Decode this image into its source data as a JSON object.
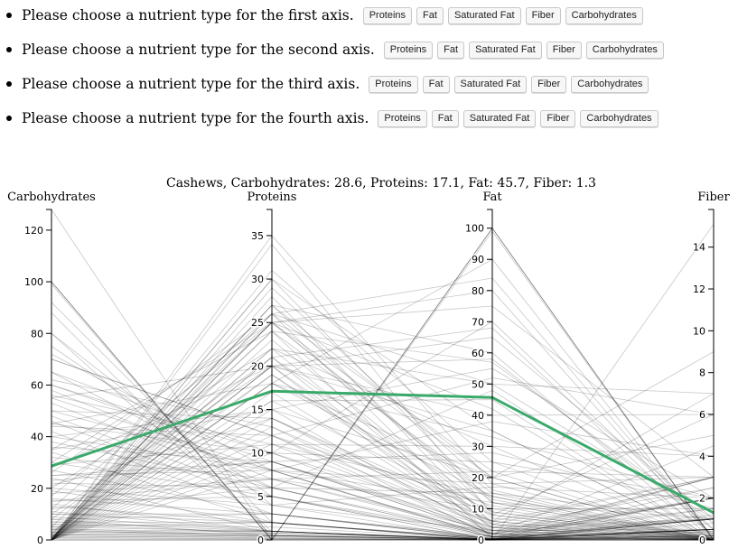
{
  "choices": [
    {
      "prompt": "Please choose a nutrient type for the first axis."
    },
    {
      "prompt": "Please choose a nutrient type for the second axis."
    },
    {
      "prompt": "Please choose a nutrient type for the third axis."
    },
    {
      "prompt": "Please choose a nutrient type for the fourth axis."
    }
  ],
  "button_labels": [
    "Proteins",
    "Fat",
    "Saturated Fat",
    "Fiber",
    "Carbohydrates"
  ],
  "chart_data": {
    "type": "parallel-coordinates",
    "title": "Cashews, Carbohydrates: 28.6, Proteins: 17.1, Fat: 45.7, Fiber: 1.3",
    "axes": [
      {
        "label": "Carbohydrates",
        "domain": [
          0,
          128
        ],
        "ticks": [
          0,
          20,
          40,
          60,
          80,
          100,
          120
        ]
      },
      {
        "label": "Proteins",
        "domain": [
          0,
          38
        ],
        "ticks": [
          0,
          5,
          10,
          15,
          20,
          25,
          30,
          35
        ]
      },
      {
        "label": "Fat",
        "domain": [
          0,
          106
        ],
        "ticks": [
          0,
          10,
          20,
          30,
          40,
          50,
          60,
          70,
          80,
          90,
          100
        ]
      },
      {
        "label": "Fiber",
        "domain": [
          0,
          15.8
        ],
        "ticks": [
          0,
          2,
          4,
          6,
          8,
          10,
          12,
          14
        ]
      }
    ],
    "highlight": {
      "name": "Cashews",
      "values": [
        28.6,
        17.1,
        45.7,
        1.3
      ],
      "color": "#3aaa6a"
    },
    "background_line_color": "#000000",
    "background_lines": [
      [
        128,
        0,
        0,
        15.1
      ],
      [
        100,
        0,
        0,
        0
      ],
      [
        100,
        0,
        0,
        0
      ],
      [
        100,
        0,
        0,
        0
      ],
      [
        99,
        0,
        100,
        0
      ],
      [
        92,
        2,
        0.5,
        3
      ],
      [
        88,
        0.5,
        0.2,
        1
      ],
      [
        80,
        1,
        0.3,
        0.5
      ],
      [
        75,
        5,
        2,
        1.5
      ],
      [
        72,
        8,
        1,
        2
      ],
      [
        70,
        12,
        1.5,
        3
      ],
      [
        65,
        10,
        2,
        4.5
      ],
      [
        62,
        13,
        6,
        7
      ],
      [
        60,
        9,
        3,
        2
      ],
      [
        58,
        7,
        2,
        1
      ],
      [
        56,
        11,
        4,
        2.5
      ],
      [
        55,
        8,
        18,
        3
      ],
      [
        53,
        6,
        1,
        0.5
      ],
      [
        50,
        14,
        8,
        6
      ],
      [
        48,
        5,
        0,
        1
      ],
      [
        46,
        4,
        3,
        0.5
      ],
      [
        45,
        10,
        25,
        2
      ],
      [
        44,
        12,
        5,
        3
      ],
      [
        42,
        3,
        1,
        1
      ],
      [
        40,
        8,
        0.5,
        2
      ],
      [
        38,
        6,
        15,
        1
      ],
      [
        36,
        9,
        2,
        3
      ],
      [
        35,
        15,
        20,
        5
      ],
      [
        34,
        2,
        0,
        0.5
      ],
      [
        32,
        7,
        10,
        1.5
      ],
      [
        30,
        5,
        1,
        2
      ],
      [
        29,
        11,
        30,
        4
      ],
      [
        28,
        20,
        40,
        6
      ],
      [
        27,
        3,
        0.3,
        0.5
      ],
      [
        26,
        26,
        50,
        7
      ],
      [
        25,
        8,
        12,
        1
      ],
      [
        24,
        1,
        0,
        0.2
      ],
      [
        23,
        9,
        4,
        1
      ],
      [
        22,
        6,
        2,
        2
      ],
      [
        21,
        14,
        6,
        3
      ],
      [
        20,
        4,
        0,
        0.5
      ],
      [
        19,
        2,
        0.5,
        0
      ],
      [
        18,
        7,
        3,
        1
      ],
      [
        17,
        25,
        20,
        9
      ],
      [
        16,
        3,
        1,
        0.5
      ],
      [
        15,
        5,
        0,
        1
      ],
      [
        14,
        1,
        0.1,
        0.2
      ],
      [
        13,
        2,
        0.2,
        0.4
      ],
      [
        12,
        6,
        1,
        1
      ],
      [
        11,
        1,
        0,
        0.5
      ],
      [
        10,
        3,
        0.5,
        0.5
      ],
      [
        10,
        2,
        0.1,
        2
      ],
      [
        9,
        1,
        0.2,
        1
      ],
      [
        8,
        0.5,
        0,
        0.3
      ],
      [
        8,
        3,
        0.4,
        0.8
      ],
      [
        7,
        2,
        0.1,
        0.2
      ],
      [
        7,
        1,
        0.1,
        2.5
      ],
      [
        6,
        0.8,
        0.2,
        0.5
      ],
      [
        6,
        1.5,
        0.3,
        1.5
      ],
      [
        5,
        1,
        0,
        0.1
      ],
      [
        5,
        2,
        0.5,
        1
      ],
      [
        4.5,
        0.5,
        0.1,
        0
      ],
      [
        4,
        1,
        0.2,
        0.4
      ],
      [
        4,
        0.3,
        0,
        1.2
      ],
      [
        3.5,
        0.6,
        0.1,
        0.3
      ],
      [
        3,
        0.5,
        0.2,
        0.5
      ],
      [
        3,
        1,
        0,
        0.1
      ],
      [
        2.5,
        0.2,
        0,
        0.2
      ],
      [
        2,
        0.4,
        0.1,
        0.1
      ],
      [
        2,
        0.8,
        0.3,
        0.5
      ],
      [
        1.5,
        0.2,
        0,
        0
      ],
      [
        1,
        0.1,
        0,
        0
      ],
      [
        1,
        0.5,
        0.1,
        0.2
      ],
      [
        0.5,
        0.1,
        0,
        0
      ],
      [
        0,
        0,
        100,
        0
      ],
      [
        0,
        0,
        99,
        0
      ],
      [
        0,
        0,
        100,
        0
      ],
      [
        0,
        30,
        35,
        0
      ],
      [
        0,
        26,
        22,
        0
      ],
      [
        0,
        25,
        12,
        0
      ],
      [
        0,
        24,
        15,
        0
      ],
      [
        0,
        22,
        30,
        0
      ],
      [
        0,
        21,
        10,
        0
      ],
      [
        0,
        20,
        6,
        0
      ],
      [
        0,
        19,
        8,
        0
      ],
      [
        0,
        18,
        14,
        0
      ],
      [
        0,
        17,
        4,
        0
      ],
      [
        0,
        16,
        9,
        0
      ],
      [
        0,
        15,
        2,
        0
      ],
      [
        0,
        14,
        3,
        0
      ],
      [
        0,
        13,
        1,
        0
      ],
      [
        0,
        12,
        11,
        0
      ],
      [
        0,
        27,
        20,
        0
      ],
      [
        0,
        28,
        5,
        0
      ],
      [
        0,
        29,
        16,
        0
      ],
      [
        0,
        31,
        25,
        0
      ],
      [
        0,
        34,
        8,
        0
      ],
      [
        0,
        35,
        18,
        0
      ],
      [
        0,
        23,
        7,
        0
      ],
      [
        0,
        20,
        1,
        0
      ],
      [
        1,
        25,
        13,
        0
      ],
      [
        1,
        22,
        4,
        0
      ],
      [
        0.5,
        27,
        9,
        0
      ],
      [
        2,
        26,
        3,
        0
      ],
      [
        0.5,
        30,
        12,
        0
      ],
      [
        1,
        18,
        20,
        0
      ],
      [
        0,
        11,
        14,
        0
      ],
      [
        0,
        10,
        6,
        0
      ],
      [
        0,
        9,
        2,
        0
      ],
      [
        0,
        8,
        1,
        0
      ],
      [
        2,
        24,
        0.5,
        0
      ],
      [
        1,
        21,
        2,
        0
      ],
      [
        3,
        19,
        5,
        0
      ],
      [
        0,
        16,
        45,
        0
      ],
      [
        0,
        20,
        35,
        0
      ],
      [
        0,
        25,
        80,
        0
      ],
      [
        0,
        27,
        60,
        0
      ],
      [
        0,
        18,
        90,
        0
      ],
      [
        60,
        10,
        70,
        0.5
      ],
      [
        55,
        20,
        65,
        1
      ],
      [
        40,
        15,
        55,
        2
      ],
      [
        30,
        25,
        75,
        3
      ],
      [
        20,
        22,
        50,
        1
      ],
      [
        10,
        20,
        58,
        0.5
      ],
      [
        5,
        25,
        42,
        0
      ],
      [
        70,
        12,
        52,
        6
      ],
      [
        50,
        8,
        38,
        4
      ],
      [
        45,
        18,
        33,
        2
      ],
      [
        25,
        9,
        28,
        1.5
      ],
      [
        15,
        7,
        22,
        3
      ],
      [
        65,
        6,
        48,
        0.3
      ],
      [
        35,
        24,
        57,
        0.8
      ],
      [
        80,
        4,
        17,
        2
      ],
      [
        12,
        26,
        84,
        0.1
      ],
      [
        8,
        21,
        68,
        0.2
      ]
    ]
  }
}
